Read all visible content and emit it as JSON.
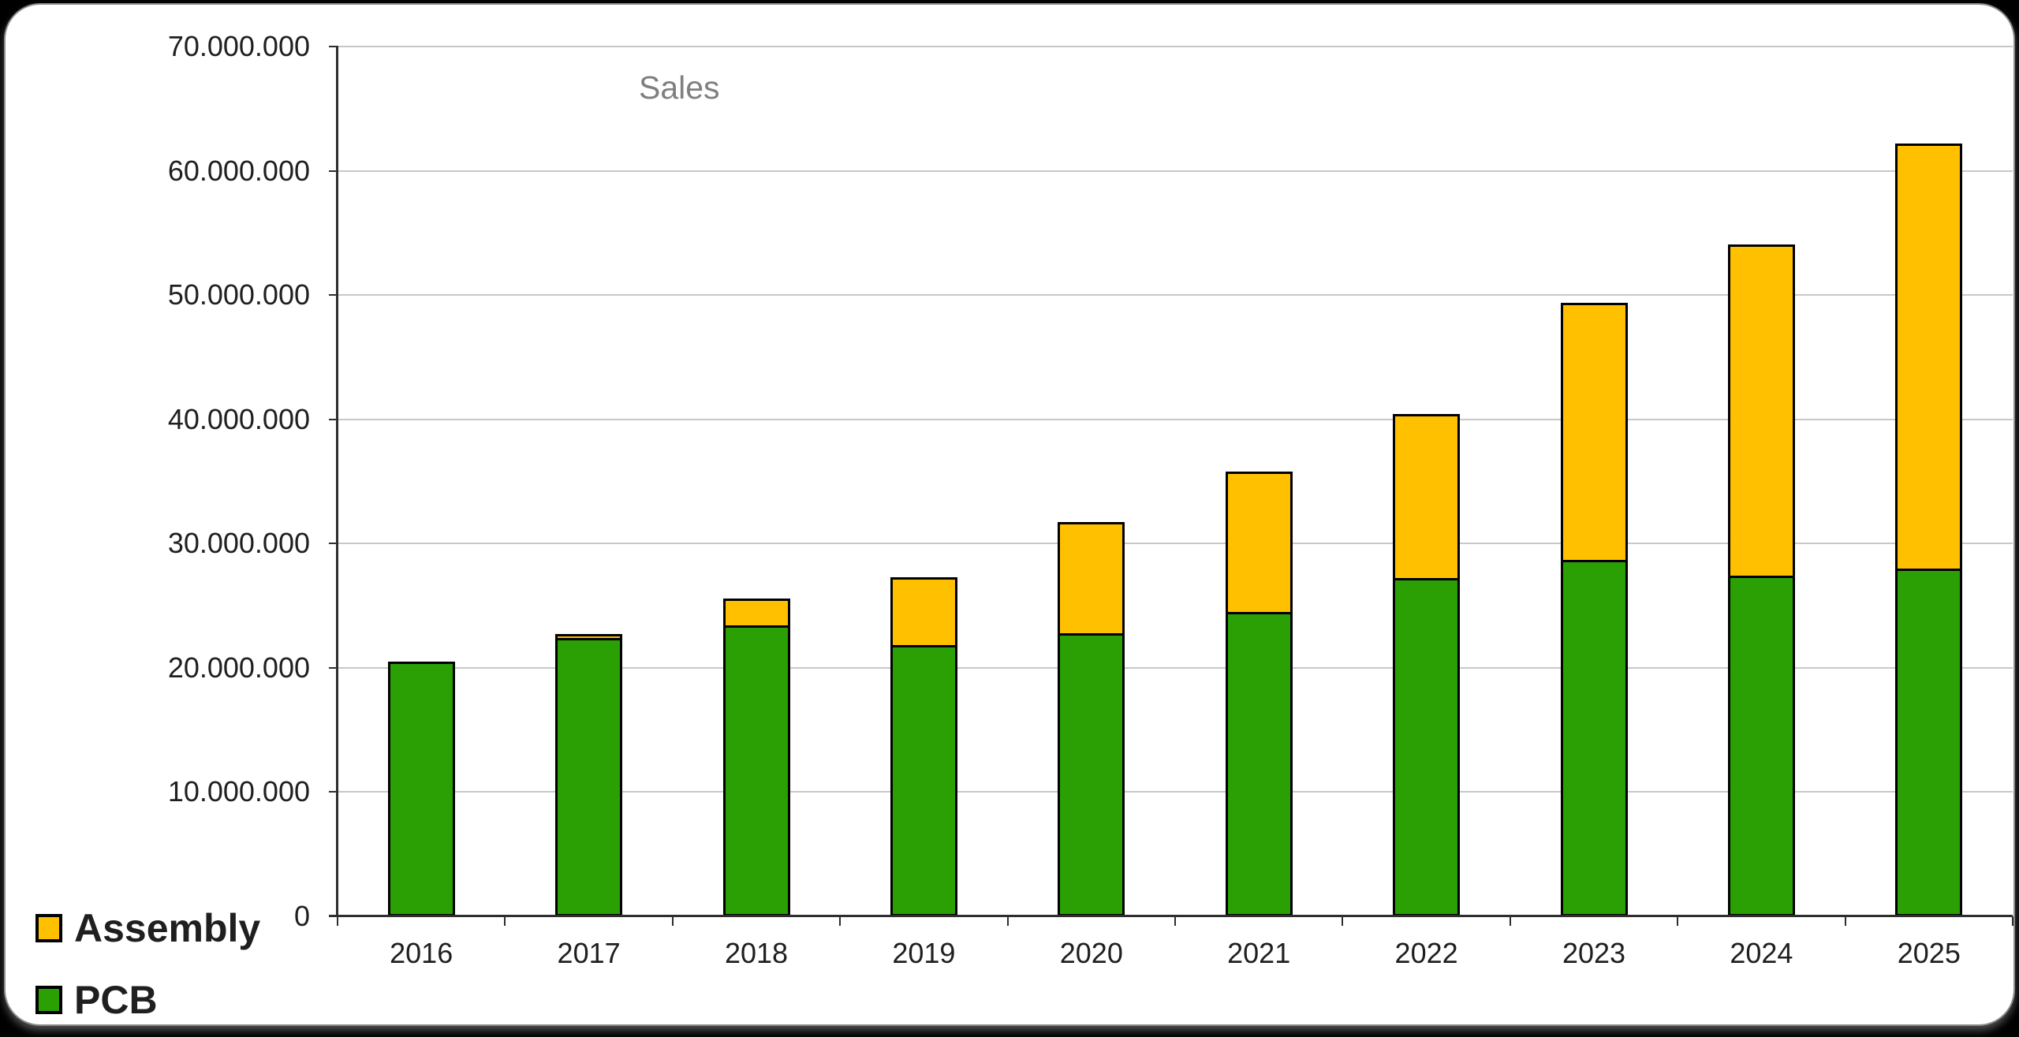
{
  "window": {
    "background": "#000000",
    "panel_background": "#FFFFFF",
    "panel_border_color": "#8C8C8C"
  },
  "chart_data": {
    "type": "bar",
    "stacked": true,
    "title": "Sales",
    "title_color": "#7F7F7F",
    "categories": [
      "2016",
      "2017",
      "2018",
      "2019",
      "2020",
      "2021",
      "2022",
      "2023",
      "2024",
      "2025"
    ],
    "series": [
      {
        "name": "PCB",
        "color": "#2BA005",
        "values": [
          20500000,
          22400000,
          23400000,
          21800000,
          22800000,
          24500000,
          27200000,
          28700000,
          27400000,
          28000000
        ]
      },
      {
        "name": "Assembly",
        "color": "#FFC000",
        "values": [
          0,
          300000,
          2200000,
          5500000,
          8900000,
          11300000,
          13200000,
          20700000,
          26700000,
          34200000
        ]
      }
    ],
    "totals": [
      20500000,
      22700000,
      25600000,
      27300000,
      31700000,
      35800000,
      40400000,
      49400000,
      54100000,
      62200000
    ],
    "ylim": [
      0,
      70000000
    ],
    "ytick_step": 10000000,
    "ytick_labels": [
      "0",
      "10.000.000",
      "20.000.000",
      "30.000.000",
      "40.000.000",
      "50.000.000",
      "60.000.000",
      "70.000.000"
    ],
    "grid": true,
    "legend": {
      "position": "bottom-left",
      "entries": [
        {
          "label": "Assembly",
          "color": "#FFC000"
        },
        {
          "label": "PCB",
          "color": "#2BA005"
        }
      ]
    },
    "colors": {
      "grid": "#C8C8C8",
      "axis": "#2E2E2E",
      "text": "#1F1F1F",
      "bar_border": "#000000"
    }
  }
}
